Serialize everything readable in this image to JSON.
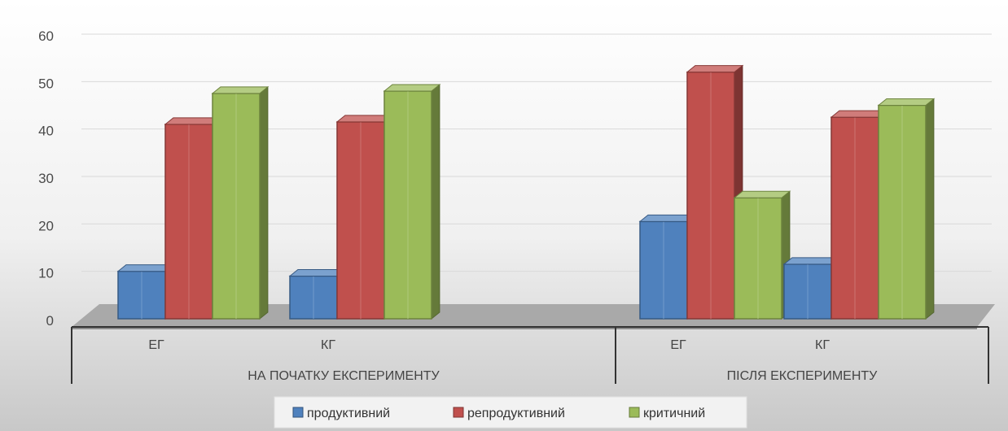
{
  "chart_data": {
    "type": "bar",
    "title": "",
    "xlabel": "",
    "ylabel": "",
    "ylim": [
      0,
      60
    ],
    "yticks": [
      0,
      10,
      20,
      30,
      40,
      50,
      60
    ],
    "grid": true,
    "legend_position": "bottom",
    "groups": [
      {
        "label": "НА ПОЧАТКУ ЕКСПЕРИМЕНТУ",
        "categories": [
          "ЕГ",
          "КГ"
        ]
      },
      {
        "label": "ПІСЛЯ ЕКСПЕРИМЕНТУ",
        "categories": [
          "ЕГ",
          "КГ"
        ]
      }
    ],
    "categories": [
      "ЕГ",
      "КГ",
      "ЕГ",
      "КГ"
    ],
    "series": [
      {
        "name": "продуктивний",
        "color": "#4f81bd",
        "values": [
          10,
          9,
          20.5,
          11.5
        ]
      },
      {
        "name": "репродуктивний",
        "color": "#c0504d",
        "values": [
          41,
          41.5,
          52,
          42.5
        ]
      },
      {
        "name": "критичний",
        "color": "#9bbb59",
        "values": [
          47.5,
          48,
          25.5,
          45
        ]
      }
    ]
  }
}
